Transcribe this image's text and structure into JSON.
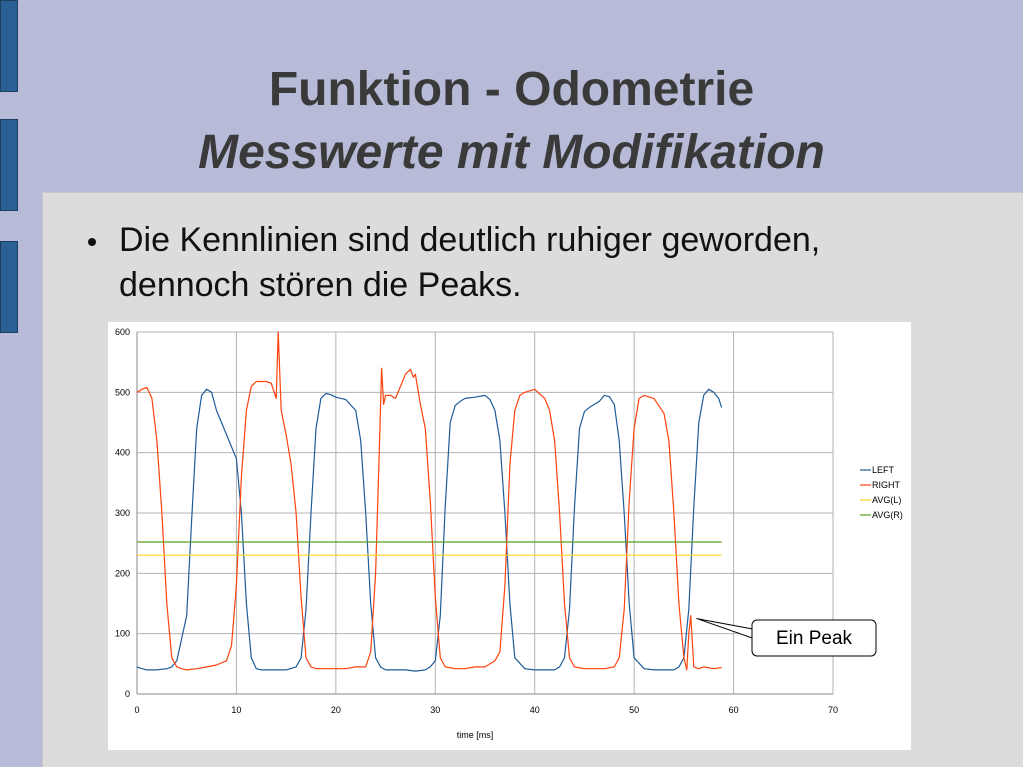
{
  "slide": {
    "title": "Funktion - Odometrie",
    "subtitle": "Messwerte mit Modifikation",
    "bullet": "Die Kennlinien sind deutlich ruhiger geworden, dennoch stören die Peaks."
  },
  "colors": {
    "background": "#b8bbd8",
    "panel": "#dcdcdc",
    "left": "#1f5c99",
    "right": "#ff420e",
    "avg_l": "#ffd320",
    "avg_r": "#579d1c"
  },
  "chart_data": {
    "type": "line",
    "xlabel": "time [ms]",
    "ylabel": "",
    "xlim": [
      0,
      70
    ],
    "ylim": [
      0,
      600
    ],
    "xticks": [
      0,
      10,
      20,
      30,
      40,
      50,
      60,
      70
    ],
    "yticks": [
      0,
      100,
      200,
      300,
      400,
      500,
      600
    ],
    "grid": true,
    "legend_position": "right",
    "annotation": {
      "text": "Ein Peak",
      "x": 56,
      "y": 125
    },
    "series": [
      {
        "name": "LEFT",
        "color": "#1f5c99",
        "x": [
          0,
          0.5,
          1,
          2,
          3,
          3.5,
          4,
          5,
          5.5,
          6,
          6.5,
          7,
          7.5,
          8,
          9,
          10,
          10.5,
          11,
          11.5,
          12,
          12.5,
          13,
          14,
          15,
          16,
          16.5,
          17,
          17.5,
          18,
          18.5,
          19,
          19.5,
          20,
          21,
          22,
          22.5,
          23,
          23.5,
          24,
          24.5,
          25,
          26,
          27,
          28,
          29,
          29.5,
          30,
          30.5,
          31,
          31.5,
          32,
          32.5,
          33,
          34,
          35,
          35.5,
          36,
          36.5,
          37,
          37.5,
          38,
          39,
          40,
          41,
          42,
          42.5,
          43,
          43.5,
          44,
          44.5,
          45,
          45.5,
          46,
          46.5,
          47,
          47.5,
          48,
          48.5,
          49,
          49.5,
          50,
          51,
          52,
          53,
          54,
          54.5,
          55,
          55.5,
          56,
          56.5,
          57,
          57.5,
          58,
          58.5,
          58.8
        ],
        "y": [
          45,
          42,
          40,
          40,
          42,
          45,
          55,
          130,
          290,
          440,
          495,
          505,
          500,
          470,
          430,
          390,
          300,
          150,
          60,
          42,
          40,
          40,
          40,
          40,
          45,
          60,
          140,
          300,
          440,
          490,
          498,
          496,
          492,
          488,
          470,
          420,
          300,
          150,
          60,
          45,
          40,
          40,
          40,
          38,
          40,
          45,
          55,
          130,
          310,
          450,
          478,
          485,
          490,
          492,
          495,
          488,
          470,
          420,
          300,
          150,
          60,
          42,
          40,
          40,
          40,
          45,
          60,
          140,
          310,
          440,
          468,
          475,
          480,
          485,
          495,
          493,
          480,
          420,
          300,
          150,
          60,
          42,
          40,
          40,
          40,
          45,
          60,
          140,
          310,
          450,
          495,
          505,
          500,
          490,
          475
        ]
      },
      {
        "name": "RIGHT",
        "color": "#ff420e",
        "x": [
          0,
          0.5,
          1,
          1.5,
          2,
          2.5,
          3,
          3.5,
          4,
          4.5,
          5,
          6,
          7,
          8,
          9,
          9.5,
          10,
          10.5,
          11,
          11.5,
          12,
          13,
          13.5,
          14,
          14.2,
          14.5,
          15,
          15.5,
          16,
          16.5,
          17,
          17.5,
          18,
          19,
          20,
          21,
          22,
          23,
          23.5,
          24,
          24.4,
          24.6,
          24.8,
          25,
          25.5,
          26,
          26.5,
          27,
          27.5,
          27.8,
          28,
          28.2,
          28.5,
          29,
          29.5,
          30,
          30.5,
          31,
          32,
          33,
          34,
          35,
          36,
          36.5,
          37,
          37.5,
          38,
          38.5,
          39,
          40,
          41,
          41.5,
          42,
          42.5,
          43,
          43.5,
          44,
          45,
          46,
          47,
          48,
          48.5,
          49,
          49.5,
          50,
          50.5,
          51,
          52,
          53,
          53.5,
          54,
          54.5,
          55,
          55.3,
          55.5,
          55.7,
          56,
          56.5,
          57,
          58,
          58.8
        ],
        "y": [
          500,
          505,
          508,
          490,
          420,
          300,
          150,
          60,
          45,
          42,
          40,
          42,
          45,
          48,
          55,
          80,
          180,
          360,
          470,
          510,
          518,
          518,
          515,
          490,
          600,
          470,
          430,
          380,
          300,
          160,
          60,
          45,
          42,
          42,
          42,
          42,
          45,
          45,
          70,
          200,
          420,
          540,
          480,
          495,
          495,
          490,
          510,
          530,
          538,
          525,
          530,
          510,
          480,
          440,
          320,
          160,
          60,
          45,
          42,
          42,
          45,
          45,
          55,
          70,
          180,
          380,
          470,
          495,
          500,
          505,
          490,
          470,
          420,
          300,
          150,
          60,
          45,
          42,
          42,
          42,
          45,
          60,
          140,
          320,
          440,
          490,
          495,
          490,
          465,
          420,
          300,
          150,
          60,
          40,
          100,
          130,
          45,
          42,
          45,
          42,
          44
        ]
      },
      {
        "name": "AVG(L)",
        "color": "#ffd320",
        "x": [
          0,
          58.8
        ],
        "y": [
          230,
          230
        ]
      },
      {
        "name": "AVG(R)",
        "color": "#579d1c",
        "x": [
          0,
          58.8
        ],
        "y": [
          252,
          252
        ]
      }
    ]
  }
}
